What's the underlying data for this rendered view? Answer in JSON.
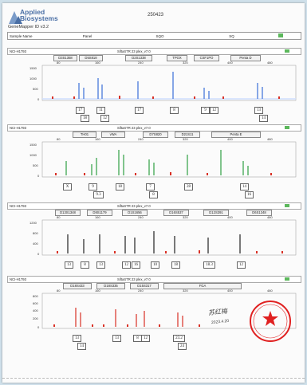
{
  "header": {
    "brand": "Applied Biosystems",
    "software": "GeneMapper ID v3.2",
    "code": "250423",
    "columns": [
      "Sample Name",
      "Panel",
      "SQO",
      "SQ"
    ]
  },
  "colors": {
    "blue": "#3a6fd8",
    "green": "#2ea043",
    "black": "#222222",
    "red": "#d93025",
    "stamp": "#e02020"
  },
  "panels": [
    {
      "sample": "NCI-H1793",
      "kit": "SiftaSTR 23 plex_v7.0",
      "dye": "blue",
      "loci": [
        "D3S1358",
        "D5S818",
        "D2S1338",
        "TPOX",
        "CSF1PO",
        "Penta D"
      ],
      "x_ticks": [
        80,
        160,
        240,
        320,
        400,
        480
      ],
      "y_ticks": [
        1500,
        1000,
        500,
        0
      ],
      "alleles": [
        {
          "label": "17",
          "row": 1
        },
        {
          "label": "11",
          "row": 1
        },
        {
          "label": "17",
          "row": 1
        },
        {
          "label": "8",
          "row": 1
        },
        {
          "label": "9",
          "row": 1
        },
        {
          "label": "12",
          "row": 1
        },
        {
          "label": "13",
          "row": 1
        },
        {
          "label": "18",
          "row": 2
        },
        {
          "label": "12",
          "row": 2
        },
        {
          "label": "14",
          "row": 2
        }
      ]
    },
    {
      "sample": "NCI-H1793",
      "kit": "SiftaSTR 23 plex_v7.0",
      "dye": "green",
      "loci": [
        "TH01",
        "vWA",
        "D7S820",
        "D21S11",
        "Penta E"
      ],
      "x_ticks": [
        80,
        160,
        240,
        320,
        400,
        480
      ],
      "y_ticks": [
        1500,
        1000,
        500,
        0
      ],
      "alleles": [
        {
          "label": "X",
          "row": 1
        },
        {
          "label": "9",
          "row": 1
        },
        {
          "label": "18",
          "row": 1
        },
        {
          "label": "7",
          "row": 1
        },
        {
          "label": "28",
          "row": 1
        },
        {
          "label": "14",
          "row": 1
        },
        {
          "label": "9.3",
          "row": 2
        },
        {
          "label": "8",
          "row": 2
        },
        {
          "label": "16",
          "row": 2
        }
      ]
    },
    {
      "sample": "NCI-H1793",
      "kit": "SiftaSTR 23 plex_v7.0",
      "dye": "black",
      "loci": [
        "D13S1348",
        "D8S1179",
        "D1S1656",
        "D16S537",
        "D12S391",
        "D6S1348"
      ],
      "x_ticks": [
        80,
        160,
        240,
        320,
        400,
        480
      ],
      "y_ticks": [
        1200,
        800,
        400,
        0
      ],
      "alleles": [
        {
          "label": "13",
          "row": 1
        },
        {
          "label": "8",
          "row": 1
        },
        {
          "label": "13",
          "row": 1
        },
        {
          "label": "12",
          "row": 1
        },
        {
          "label": "16",
          "row": 1
        },
        {
          "label": "10",
          "row": 1
        },
        {
          "label": "18",
          "row": 1
        },
        {
          "label": "18.3",
          "row": 1
        },
        {
          "label": "12",
          "row": 1
        }
      ]
    },
    {
      "sample": "NCI-H1793",
      "kit": "SiftaSTR 23 plex_v7.0",
      "dye": "red",
      "loci": [
        "D18S433",
        "D18S335",
        "D15S317",
        "FGA"
      ],
      "x_ticks": [
        80,
        160,
        240,
        320,
        400,
        480
      ],
      "y_ticks": [
        800,
        600,
        400,
        200,
        0
      ],
      "alleles": [
        {
          "label": "13",
          "row": 1
        },
        {
          "label": "13",
          "row": 1
        },
        {
          "label": "8",
          "row": 1
        },
        {
          "label": "12",
          "row": 1
        },
        {
          "label": "23.2",
          "row": 1
        },
        {
          "label": "14",
          "row": 2
        },
        {
          "label": "24",
          "row": 2
        }
      ]
    }
  ],
  "signature": {
    "name": "苏红梅",
    "date": "2023.4.20"
  },
  "stamp": {
    "text": "核查检验中心专用章"
  }
}
